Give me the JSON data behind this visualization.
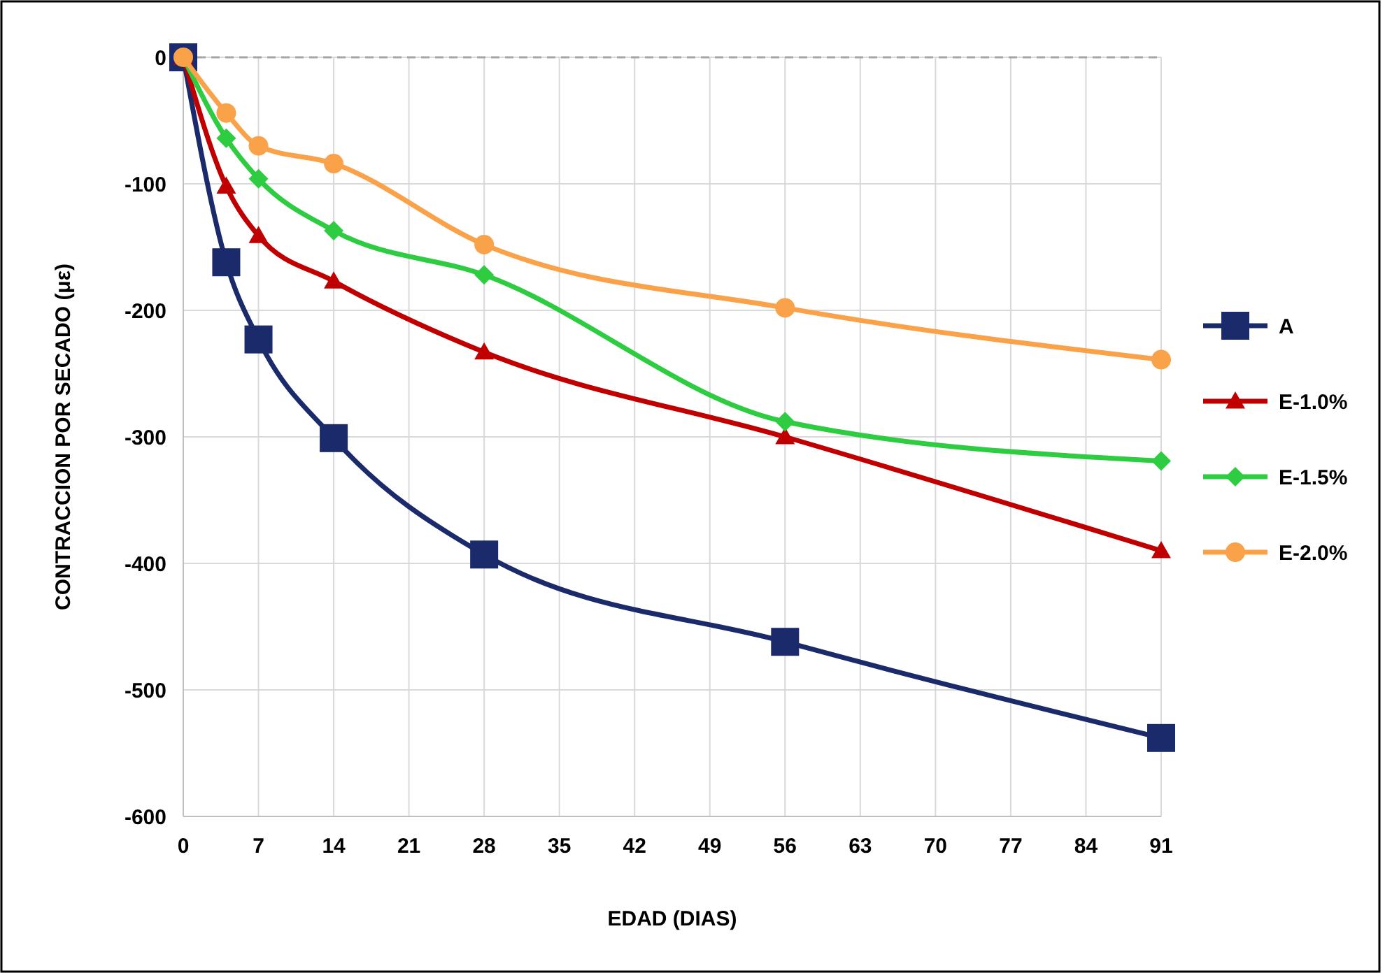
{
  "chart_data": {
    "type": "line",
    "xlabel": "EDAD (DIAS)",
    "ylabel": "CONTRACCION POR SECADO (με)",
    "x": [
      0,
      4,
      7,
      14,
      28,
      56,
      91
    ],
    "xlim": [
      0,
      91
    ],
    "xticks": [
      0,
      7,
      14,
      21,
      28,
      35,
      42,
      49,
      56,
      63,
      70,
      77,
      84,
      91
    ],
    "ylim": [
      -600,
      0
    ],
    "yticks": [
      -600,
      -500,
      -400,
      -300,
      -200,
      -100,
      0
    ],
    "grid": true,
    "legend": "right",
    "line_style": "solid",
    "ref_lines": [
      {
        "axis": "y",
        "value": 0,
        "color": "#a6a6a6",
        "line_style": "dashed"
      }
    ],
    "series": [
      {
        "name": "A",
        "color": "#1b2a6b",
        "marker": "square",
        "values": [
          0,
          -162,
          -223,
          -301,
          -393,
          -462,
          -538
        ]
      },
      {
        "name": "E-1.0%",
        "color": "#c00000",
        "marker": "triangle",
        "values": [
          0,
          -102,
          -141,
          -177,
          -233,
          -300,
          -390
        ]
      },
      {
        "name": "E-1.5%",
        "color": "#2ecc40",
        "marker": "diamond",
        "values": [
          0,
          -64,
          -96,
          -137,
          -172,
          -288,
          -319
        ]
      },
      {
        "name": "E-2.0%",
        "color": "#f9a24a",
        "marker": "circle",
        "values": [
          0,
          -44,
          -70,
          -84,
          -148,
          -198,
          -239
        ]
      }
    ]
  }
}
